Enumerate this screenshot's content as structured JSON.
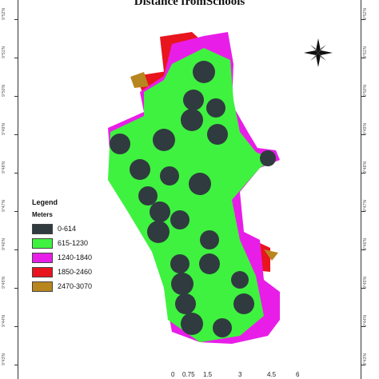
{
  "map": {
    "title": "Distance fromSchools",
    "legend_title": "Legend",
    "legend_unit": "Meters",
    "legend": [
      {
        "label": "0-614",
        "color": "#2f3b3f"
      },
      {
        "label": "615-1230",
        "color": "#3ff23f"
      },
      {
        "label": "1240-1840",
        "color": "#e81ee8"
      },
      {
        "label": "1850-2460",
        "color": "#e8141e"
      },
      {
        "label": "2470-3070",
        "color": "#b8861e"
      }
    ],
    "scale_ticks": [
      "0",
      "0.75",
      "1.5",
      "3",
      "4.5",
      "6"
    ],
    "coord_left": [
      "9°52'N",
      "9°51'N",
      "9°50'N",
      "9°49'N",
      "9°48'N",
      "9°47'N",
      "9°46'N",
      "9°45'N",
      "9°44'N",
      "9°43'N"
    ],
    "coord_right": [
      "9°52'N",
      "9°51'N",
      "9°50'N",
      "9°49'N",
      "9°48'N",
      "9°47'N",
      "9°46'N",
      "9°45'N",
      "9°44'N",
      "9°43'N"
    ],
    "north_arrow": "north-arrow-icon"
  }
}
